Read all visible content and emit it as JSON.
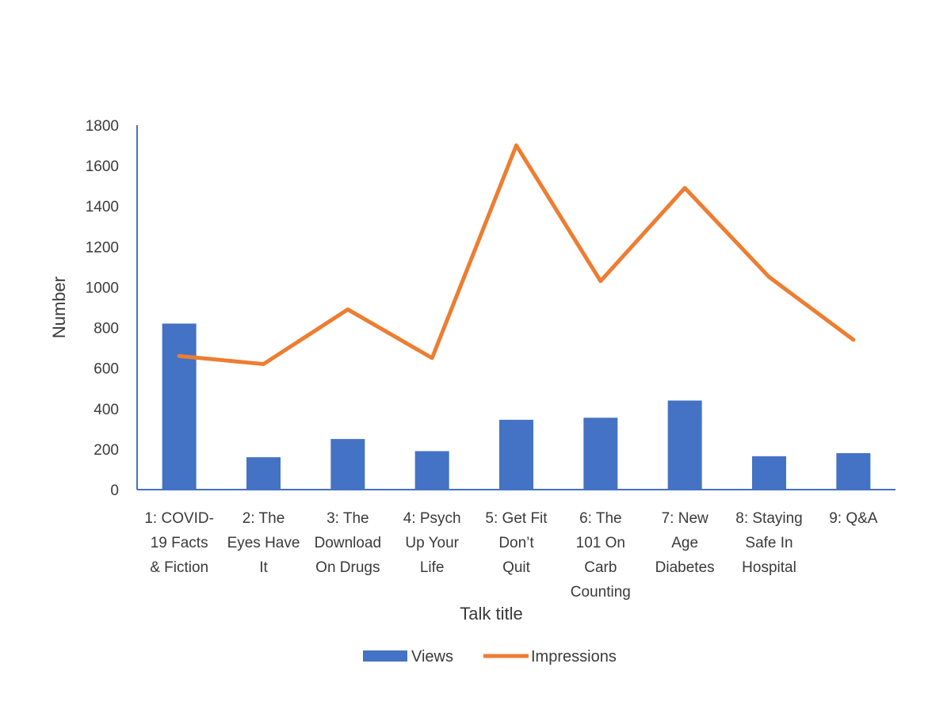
{
  "chart_data": {
    "type": "bar",
    "categories": [
      [
        "1: COVID-",
        "19 Facts",
        "& Fiction"
      ],
      [
        "2: The",
        "Eyes Have",
        "It"
      ],
      [
        "3: The",
        "Download",
        "On Drugs"
      ],
      [
        "4: Psych",
        "Up Your",
        "Life"
      ],
      [
        "5: Get Fit",
        "Don’t",
        "Quit"
      ],
      [
        "6: The",
        "101 On",
        "Carb",
        "Counting"
      ],
      [
        "7: New",
        "Age",
        "Diabetes"
      ],
      [
        "8: Staying",
        "Safe In",
        "Hospital"
      ],
      [
        "9: Q&A"
      ]
    ],
    "series": [
      {
        "name": "Views",
        "type": "bar",
        "color": "#4472C4",
        "values": [
          820,
          160,
          250,
          190,
          345,
          355,
          440,
          165,
          180
        ]
      },
      {
        "name": "Impressions",
        "type": "line",
        "color": "#ED7D31",
        "values": [
          660,
          620,
          890,
          650,
          1700,
          1030,
          1490,
          1050,
          740
        ]
      }
    ],
    "xlabel": "Talk title",
    "ylabel": "Number",
    "ylim": [
      0,
      1800
    ],
    "yticks": [
      0,
      200,
      400,
      600,
      800,
      1000,
      1200,
      1400,
      1600,
      1800
    ],
    "grid": false,
    "legend_position": "bottom"
  }
}
